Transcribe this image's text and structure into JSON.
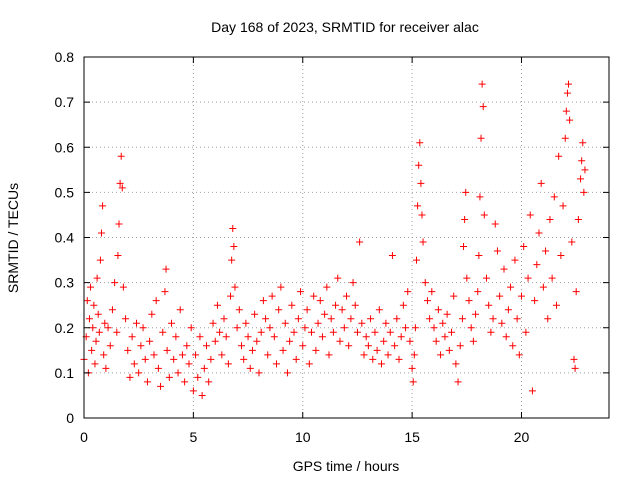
{
  "chart_data": {
    "type": "scatter",
    "title": "Day 168 of 2023, SRMTID for receiver alac",
    "xlabel": "GPS time / hours",
    "ylabel": "SRMTID / TECUs",
    "xlim": [
      0,
      24
    ],
    "ylim": [
      0,
      0.8
    ],
    "grid": true,
    "x_ticks": [
      0,
      5,
      10,
      15,
      20
    ],
    "x_tick_labels": [
      "0",
      "5",
      "10",
      "15",
      "20"
    ],
    "y_ticks": [
      0,
      0.1,
      0.2,
      0.3,
      0.4,
      0.5,
      0.6,
      0.7,
      0.8
    ],
    "y_tick_labels": [
      "0",
      "0.1",
      "0.2",
      "0.3",
      "0.4",
      "0.5",
      "0.6",
      "0.7",
      "0.8"
    ],
    "marker": "+",
    "color": "#ff0000",
    "series": [
      {
        "name": "SRMTID",
        "points": [
          [
            0.0,
            0.13
          ],
          [
            0.1,
            0.18
          ],
          [
            0.15,
            0.26
          ],
          [
            0.2,
            0.1
          ],
          [
            0.25,
            0.22
          ],
          [
            0.3,
            0.29
          ],
          [
            0.35,
            0.15
          ],
          [
            0.4,
            0.2
          ],
          [
            0.45,
            0.25
          ],
          [
            0.5,
            0.12
          ],
          [
            0.55,
            0.17
          ],
          [
            0.6,
            0.31
          ],
          [
            0.65,
            0.23
          ],
          [
            0.7,
            0.19
          ],
          [
            0.75,
            0.35
          ],
          [
            0.8,
            0.41
          ],
          [
            0.85,
            0.47
          ],
          [
            0.9,
            0.14
          ],
          [
            0.95,
            0.21
          ],
          [
            1.0,
            0.11
          ],
          [
            1.1,
            0.2
          ],
          [
            1.2,
            0.16
          ],
          [
            1.3,
            0.24
          ],
          [
            1.4,
            0.3
          ],
          [
            1.5,
            0.19
          ],
          [
            1.55,
            0.36
          ],
          [
            1.6,
            0.43
          ],
          [
            1.65,
            0.52
          ],
          [
            1.7,
            0.58
          ],
          [
            1.75,
            0.51
          ],
          [
            1.8,
            0.29
          ],
          [
            1.9,
            0.22
          ],
          [
            2.0,
            0.15
          ],
          [
            2.1,
            0.09
          ],
          [
            2.2,
            0.18
          ],
          [
            2.3,
            0.12
          ],
          [
            2.4,
            0.21
          ],
          [
            2.5,
            0.1
          ],
          [
            2.6,
            0.16
          ],
          [
            2.7,
            0.2
          ],
          [
            2.8,
            0.13
          ],
          [
            2.9,
            0.08
          ],
          [
            3.0,
            0.17
          ],
          [
            3.1,
            0.23
          ],
          [
            3.2,
            0.14
          ],
          [
            3.3,
            0.26
          ],
          [
            3.4,
            0.11
          ],
          [
            3.5,
            0.07
          ],
          [
            3.6,
            0.19
          ],
          [
            3.7,
            0.28
          ],
          [
            3.75,
            0.33
          ],
          [
            3.8,
            0.15
          ],
          [
            3.9,
            0.09
          ],
          [
            4.0,
            0.21
          ],
          [
            4.1,
            0.13
          ],
          [
            4.2,
            0.18
          ],
          [
            4.3,
            0.1
          ],
          [
            4.4,
            0.24
          ],
          [
            4.5,
            0.14
          ],
          [
            4.6,
            0.08
          ],
          [
            4.7,
            0.16
          ],
          [
            4.8,
            0.12
          ],
          [
            4.9,
            0.2
          ],
          [
            5.0,
            0.06
          ],
          [
            5.1,
            0.14
          ],
          [
            5.2,
            0.09
          ],
          [
            5.3,
            0.18
          ],
          [
            5.4,
            0.05
          ],
          [
            5.5,
            0.11
          ],
          [
            5.6,
            0.16
          ],
          [
            5.7,
            0.08
          ],
          [
            5.8,
            0.13
          ],
          [
            5.9,
            0.21
          ],
          [
            6.0,
            0.17
          ],
          [
            6.1,
            0.25
          ],
          [
            6.2,
            0.19
          ],
          [
            6.3,
            0.14
          ],
          [
            6.4,
            0.22
          ],
          [
            6.5,
            0.18
          ],
          [
            6.6,
            0.12
          ],
          [
            6.7,
            0.27
          ],
          [
            6.75,
            0.35
          ],
          [
            6.8,
            0.42
          ],
          [
            6.85,
            0.38
          ],
          [
            6.9,
            0.29
          ],
          [
            7.0,
            0.2
          ],
          [
            7.1,
            0.24
          ],
          [
            7.2,
            0.16
          ],
          [
            7.3,
            0.13
          ],
          [
            7.4,
            0.21
          ],
          [
            7.5,
            0.18
          ],
          [
            7.6,
            0.11
          ],
          [
            7.7,
            0.15
          ],
          [
            7.8,
            0.23
          ],
          [
            7.9,
            0.17
          ],
          [
            8.0,
            0.1
          ],
          [
            8.1,
            0.19
          ],
          [
            8.2,
            0.26
          ],
          [
            8.3,
            0.22
          ],
          [
            8.4,
            0.14
          ],
          [
            8.5,
            0.2
          ],
          [
            8.6,
            0.27
          ],
          [
            8.7,
            0.18
          ],
          [
            8.8,
            0.12
          ],
          [
            8.9,
            0.24
          ],
          [
            9.0,
            0.29
          ],
          [
            9.1,
            0.15
          ],
          [
            9.2,
            0.21
          ],
          [
            9.3,
            0.1
          ],
          [
            9.4,
            0.17
          ],
          [
            9.5,
            0.25
          ],
          [
            9.6,
            0.19
          ],
          [
            9.7,
            0.13
          ],
          [
            9.8,
            0.22
          ],
          [
            9.9,
            0.28
          ],
          [
            10.0,
            0.16
          ],
          [
            10.1,
            0.2
          ],
          [
            10.2,
            0.24
          ],
          [
            10.3,
            0.12
          ],
          [
            10.4,
            0.19
          ],
          [
            10.5,
            0.27
          ],
          [
            10.6,
            0.15
          ],
          [
            10.7,
            0.21
          ],
          [
            10.8,
            0.26
          ],
          [
            10.9,
            0.18
          ],
          [
            11.0,
            0.23
          ],
          [
            11.1,
            0.29
          ],
          [
            11.2,
            0.14
          ],
          [
            11.3,
            0.22
          ],
          [
            11.4,
            0.19
          ],
          [
            11.5,
            0.25
          ],
          [
            11.6,
            0.31
          ],
          [
            11.7,
            0.17
          ],
          [
            11.8,
            0.24
          ],
          [
            11.9,
            0.2
          ],
          [
            12.0,
            0.27
          ],
          [
            12.1,
            0.16
          ],
          [
            12.2,
            0.22
          ],
          [
            12.3,
            0.3
          ],
          [
            12.4,
            0.25
          ],
          [
            12.5,
            0.19
          ],
          [
            12.6,
            0.39
          ],
          [
            12.7,
            0.21
          ],
          [
            12.8,
            0.14
          ],
          [
            12.9,
            0.18
          ],
          [
            13.0,
            0.16
          ],
          [
            13.1,
            0.22
          ],
          [
            13.2,
            0.13
          ],
          [
            13.3,
            0.19
          ],
          [
            13.4,
            0.15
          ],
          [
            13.5,
            0.24
          ],
          [
            13.6,
            0.12
          ],
          [
            13.7,
            0.17
          ],
          [
            13.8,
            0.21
          ],
          [
            13.9,
            0.14
          ],
          [
            14.0,
            0.19
          ],
          [
            14.1,
            0.36
          ],
          [
            14.2,
            0.16
          ],
          [
            14.3,
            0.22
          ],
          [
            14.4,
            0.13
          ],
          [
            14.5,
            0.18
          ],
          [
            14.6,
            0.25
          ],
          [
            14.7,
            0.2
          ],
          [
            14.8,
            0.28
          ],
          [
            14.9,
            0.17
          ],
          [
            15.0,
            0.11
          ],
          [
            15.05,
            0.08
          ],
          [
            15.1,
            0.14
          ],
          [
            15.15,
            0.2
          ],
          [
            15.2,
            0.35
          ],
          [
            15.25,
            0.47
          ],
          [
            15.3,
            0.56
          ],
          [
            15.35,
            0.61
          ],
          [
            15.4,
            0.52
          ],
          [
            15.45,
            0.45
          ],
          [
            15.5,
            0.39
          ],
          [
            15.6,
            0.3
          ],
          [
            15.7,
            0.26
          ],
          [
            15.8,
            0.22
          ],
          [
            15.9,
            0.28
          ],
          [
            16.0,
            0.2
          ],
          [
            16.1,
            0.17
          ],
          [
            16.2,
            0.24
          ],
          [
            16.3,
            0.14
          ],
          [
            16.4,
            0.21
          ],
          [
            16.5,
            0.18
          ],
          [
            16.6,
            0.23
          ],
          [
            16.7,
            0.15
          ],
          [
            16.8,
            0.19
          ],
          [
            16.9,
            0.27
          ],
          [
            17.0,
            0.12
          ],
          [
            17.1,
            0.08
          ],
          [
            17.2,
            0.16
          ],
          [
            17.3,
            0.22
          ],
          [
            17.35,
            0.38
          ],
          [
            17.4,
            0.44
          ],
          [
            17.45,
            0.5
          ],
          [
            17.5,
            0.31
          ],
          [
            17.6,
            0.26
          ],
          [
            17.7,
            0.2
          ],
          [
            17.8,
            0.17
          ],
          [
            17.9,
            0.23
          ],
          [
            18.0,
            0.28
          ],
          [
            18.05,
            0.36
          ],
          [
            18.1,
            0.49
          ],
          [
            18.15,
            0.62
          ],
          [
            18.2,
            0.74
          ],
          [
            18.25,
            0.69
          ],
          [
            18.3,
            0.45
          ],
          [
            18.4,
            0.31
          ],
          [
            18.5,
            0.25
          ],
          [
            18.6,
            0.19
          ],
          [
            18.7,
            0.22
          ],
          [
            18.8,
            0.43
          ],
          [
            18.9,
            0.37
          ],
          [
            19.0,
            0.27
          ],
          [
            19.1,
            0.21
          ],
          [
            19.2,
            0.33
          ],
          [
            19.3,
            0.18
          ],
          [
            19.4,
            0.24
          ],
          [
            19.5,
            0.29
          ],
          [
            19.6,
            0.16
          ],
          [
            19.7,
            0.35
          ],
          [
            19.8,
            0.22
          ],
          [
            19.9,
            0.14
          ],
          [
            20.0,
            0.27
          ],
          [
            20.1,
            0.38
          ],
          [
            20.2,
            0.19
          ],
          [
            20.3,
            0.31
          ],
          [
            20.4,
            0.45
          ],
          [
            20.5,
            0.06
          ],
          [
            20.6,
            0.26
          ],
          [
            20.7,
            0.34
          ],
          [
            20.8,
            0.41
          ],
          [
            20.9,
            0.52
          ],
          [
            21.0,
            0.29
          ],
          [
            21.1,
            0.37
          ],
          [
            21.2,
            0.22
          ],
          [
            21.3,
            0.44
          ],
          [
            21.4,
            0.31
          ],
          [
            21.5,
            0.49
          ],
          [
            21.6,
            0.25
          ],
          [
            21.7,
            0.58
          ],
          [
            21.8,
            0.36
          ],
          [
            21.9,
            0.47
          ],
          [
            22.0,
            0.62
          ],
          [
            22.05,
            0.68
          ],
          [
            22.1,
            0.72
          ],
          [
            22.15,
            0.74
          ],
          [
            22.2,
            0.66
          ],
          [
            22.3,
            0.39
          ],
          [
            22.4,
            0.13
          ],
          [
            22.45,
            0.11
          ],
          [
            22.5,
            0.28
          ],
          [
            22.6,
            0.44
          ],
          [
            22.7,
            0.53
          ],
          [
            22.75,
            0.57
          ],
          [
            22.8,
            0.61
          ],
          [
            22.85,
            0.5
          ],
          [
            22.9,
            0.55
          ]
        ]
      }
    ]
  }
}
